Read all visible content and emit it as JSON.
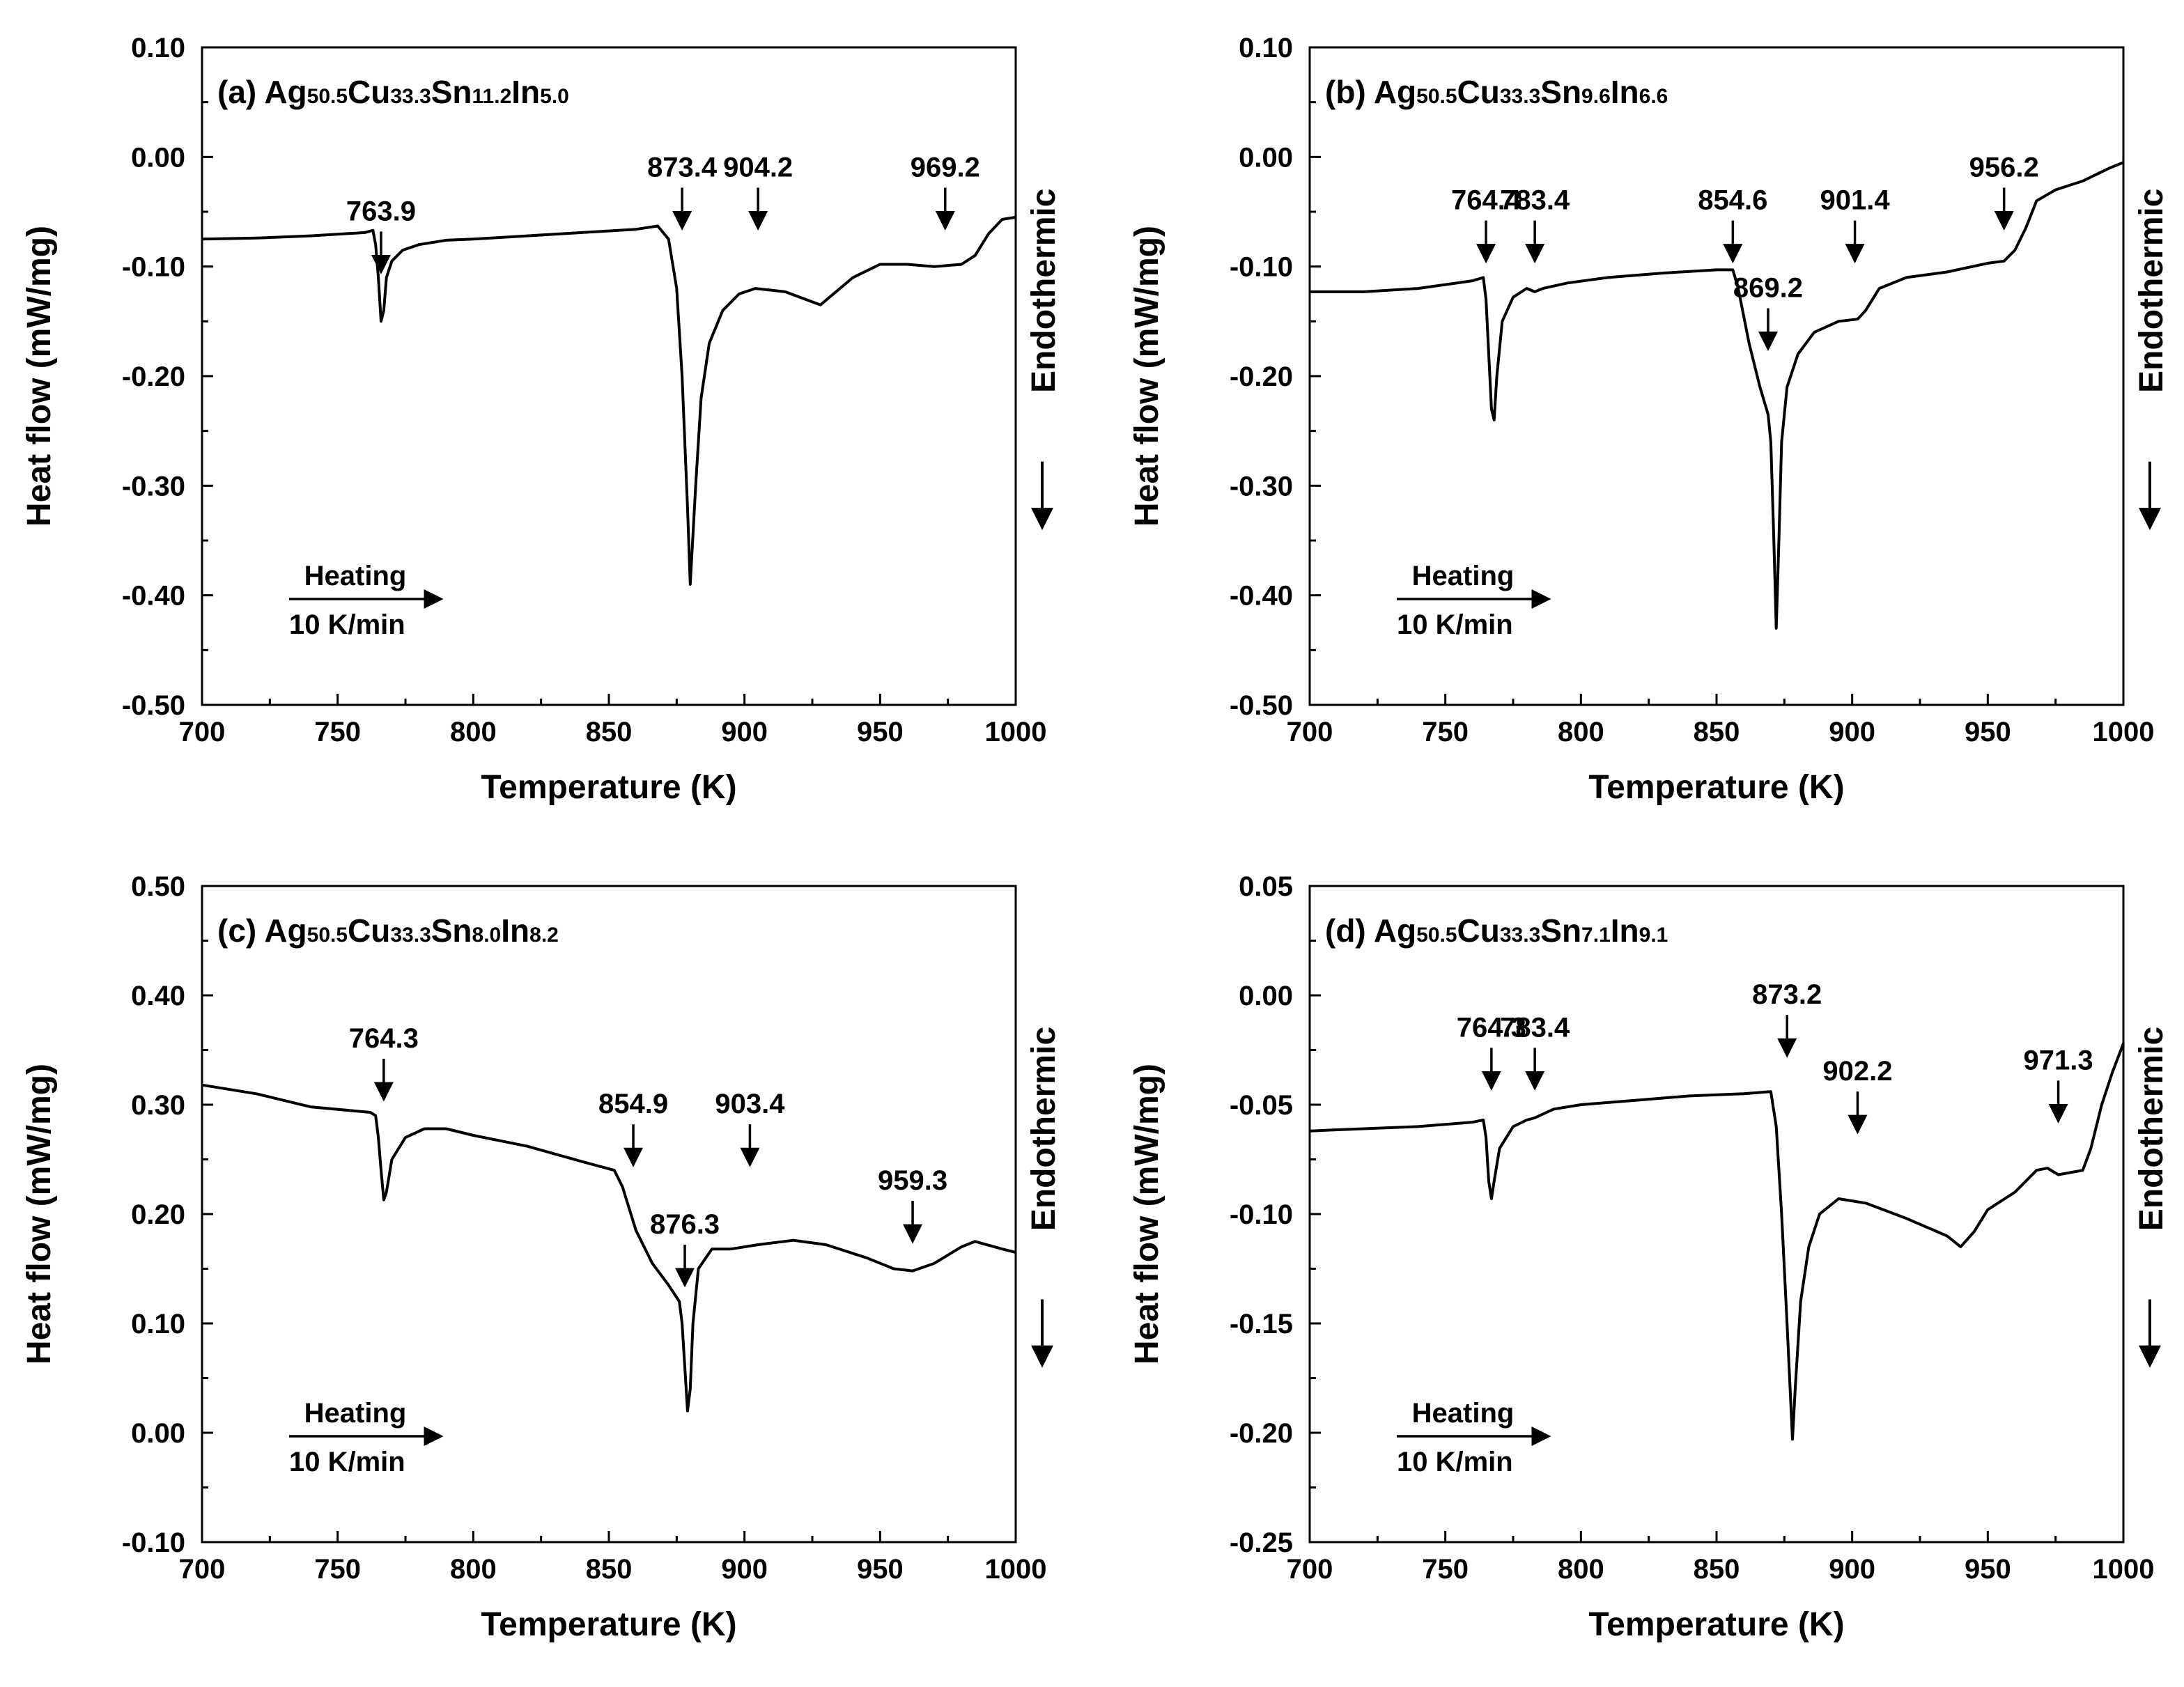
{
  "chart_data": [
    {
      "type": "line",
      "panel_label": "(a)",
      "title_parts": [
        [
          "Ag",
          false
        ],
        [
          "50.5",
          true
        ],
        [
          "Cu",
          false
        ],
        [
          "33.3",
          true
        ],
        [
          "Sn",
          false
        ],
        [
          "11.2",
          true
        ],
        [
          "In",
          false
        ],
        [
          "5.0",
          true
        ]
      ],
      "xlabel": "Temperature (K)",
      "ylabel": "Heat flow (mW/mg)",
      "side_label": "Endothermic",
      "xlim": [
        700,
        1000
      ],
      "ylim": [
        -0.5,
        0.1
      ],
      "x_ticks": [
        700,
        750,
        800,
        850,
        900,
        950,
        1000
      ],
      "y_ticks": [
        -0.5,
        -0.4,
        -0.3,
        -0.2,
        -0.1,
        0.0,
        0.1
      ],
      "y_tick_labels": [
        "-0.50",
        "-0.40",
        "-0.30",
        "-0.20",
        "-0.10",
        "0.00",
        "0.10"
      ],
      "annotation_heating": "Heating",
      "annotation_rate": "10 K/min",
      "series": [
        {
          "name": "DSC heating curve",
          "points": [
            [
              700,
              -0.075
            ],
            [
              720,
              -0.074
            ],
            [
              740,
              -0.072
            ],
            [
              760,
              -0.069
            ],
            [
              763,
              -0.067
            ],
            [
              764,
              -0.08
            ],
            [
              765,
              -0.11
            ],
            [
              766,
              -0.15
            ],
            [
              767,
              -0.14
            ],
            [
              768,
              -0.11
            ],
            [
              770,
              -0.095
            ],
            [
              774,
              -0.085
            ],
            [
              780,
              -0.08
            ],
            [
              790,
              -0.076
            ],
            [
              800,
              -0.075
            ],
            [
              820,
              -0.072
            ],
            [
              840,
              -0.069
            ],
            [
              860,
              -0.066
            ],
            [
              868,
              -0.063
            ],
            [
              872,
              -0.075
            ],
            [
              875,
              -0.12
            ],
            [
              877,
              -0.2
            ],
            [
              879,
              -0.32
            ],
            [
              880,
              -0.39
            ],
            [
              882,
              -0.3
            ],
            [
              884,
              -0.22
            ],
            [
              887,
              -0.17
            ],
            [
              892,
              -0.14
            ],
            [
              898,
              -0.125
            ],
            [
              904,
              -0.12
            ],
            [
              915,
              -0.123
            ],
            [
              928,
              -0.135
            ],
            [
              940,
              -0.11
            ],
            [
              950,
              -0.098
            ],
            [
              960,
              -0.098
            ],
            [
              970,
              -0.1
            ],
            [
              980,
              -0.098
            ],
            [
              985,
              -0.09
            ],
            [
              990,
              -0.07
            ],
            [
              995,
              -0.057
            ],
            [
              1000,
              -0.055
            ]
          ]
        }
      ],
      "peaks": [
        {
          "label": "763.9",
          "x": 766,
          "y": -0.11
        },
        {
          "label": "873.4",
          "x": 877,
          "y": -0.07
        },
        {
          "label": "904.2",
          "x": 905,
          "y": -0.07
        },
        {
          "label": "969.2",
          "x": 974,
          "y": -0.07
        }
      ]
    },
    {
      "type": "line",
      "panel_label": "(b)",
      "title_parts": [
        [
          "Ag",
          false
        ],
        [
          "50.5",
          true
        ],
        [
          "Cu",
          false
        ],
        [
          "33.3",
          true
        ],
        [
          "Sn",
          false
        ],
        [
          "9.6",
          true
        ],
        [
          "In",
          false
        ],
        [
          "6.6",
          true
        ]
      ],
      "xlabel": "Temperature (K)",
      "ylabel": "Heat flow (mW/mg)",
      "side_label": "Endothermic",
      "xlim": [
        700,
        1000
      ],
      "ylim": [
        -0.5,
        0.1
      ],
      "x_ticks": [
        700,
        750,
        800,
        850,
        900,
        950,
        1000
      ],
      "y_ticks": [
        -0.5,
        -0.4,
        -0.3,
        -0.2,
        -0.1,
        0.0,
        0.1
      ],
      "y_tick_labels": [
        "-0.50",
        "-0.40",
        "-0.30",
        "-0.20",
        "-0.10",
        "0.00",
        "0.10"
      ],
      "annotation_heating": "Heating",
      "annotation_rate": "10 K/min",
      "series": [
        {
          "name": "DSC heating curve",
          "points": [
            [
              700,
              -0.123
            ],
            [
              720,
              -0.123
            ],
            [
              740,
              -0.12
            ],
            [
              760,
              -0.113
            ],
            [
              764,
              -0.11
            ],
            [
              765,
              -0.13
            ],
            [
              766,
              -0.18
            ],
            [
              767,
              -0.23
            ],
            [
              768,
              -0.24
            ],
            [
              769,
              -0.2
            ],
            [
              771,
              -0.15
            ],
            [
              775,
              -0.128
            ],
            [
              780,
              -0.12
            ],
            [
              783,
              -0.123
            ],
            [
              786,
              -0.12
            ],
            [
              795,
              -0.115
            ],
            [
              810,
              -0.11
            ],
            [
              830,
              -0.106
            ],
            [
              850,
              -0.103
            ],
            [
              856,
              -0.103
            ],
            [
              858,
              -0.12
            ],
            [
              862,
              -0.17
            ],
            [
              866,
              -0.21
            ],
            [
              869,
              -0.235
            ],
            [
              870,
              -0.26
            ],
            [
              871,
              -0.34
            ],
            [
              872,
              -0.43
            ],
            [
              873,
              -0.35
            ],
            [
              874,
              -0.26
            ],
            [
              876,
              -0.21
            ],
            [
              880,
              -0.18
            ],
            [
              886,
              -0.16
            ],
            [
              895,
              -0.15
            ],
            [
              902,
              -0.148
            ],
            [
              905,
              -0.14
            ],
            [
              910,
              -0.12
            ],
            [
              920,
              -0.11
            ],
            [
              935,
              -0.105
            ],
            [
              950,
              -0.097
            ],
            [
              956,
              -0.095
            ],
            [
              960,
              -0.085
            ],
            [
              964,
              -0.065
            ],
            [
              968,
              -0.04
            ],
            [
              975,
              -0.03
            ],
            [
              985,
              -0.022
            ],
            [
              995,
              -0.01
            ],
            [
              1000,
              -0.005
            ]
          ]
        }
      ],
      "peaks": [
        {
          "label": "764.4",
          "x": 765,
          "y": -0.1
        },
        {
          "label": "783.4",
          "x": 783,
          "y": -0.1
        },
        {
          "label": "854.6",
          "x": 856,
          "y": -0.1
        },
        {
          "label": "869.2",
          "x": 869,
          "y": -0.18
        },
        {
          "label": "901.4",
          "x": 901,
          "y": -0.1
        },
        {
          "label": "956.2",
          "x": 956,
          "y": -0.07
        }
      ]
    },
    {
      "type": "line",
      "panel_label": "(c)",
      "title_parts": [
        [
          "Ag",
          false
        ],
        [
          "50.5",
          true
        ],
        [
          "Cu",
          false
        ],
        [
          "33.3",
          true
        ],
        [
          "Sn",
          false
        ],
        [
          "8.0",
          true
        ],
        [
          "In",
          false
        ],
        [
          "8.2",
          true
        ]
      ],
      "xlabel": "Temperature (K)",
      "ylabel": "Heat flow (mW/mg)",
      "side_label": "Endothermic",
      "xlim": [
        700,
        1000
      ],
      "ylim": [
        -0.1,
        0.5
      ],
      "x_ticks": [
        700,
        750,
        800,
        850,
        900,
        950,
        1000
      ],
      "y_ticks": [
        -0.1,
        0.0,
        0.1,
        0.2,
        0.3,
        0.4,
        0.5
      ],
      "y_tick_labels": [
        "-0.10",
        "0.00",
        "0.10",
        "0.20",
        "0.30",
        "0.40",
        "0.50"
      ],
      "annotation_heating": "Heating",
      "annotation_rate": "10 K/min",
      "series": [
        {
          "name": "DSC heating curve",
          "points": [
            [
              700,
              0.318
            ],
            [
              720,
              0.31
            ],
            [
              740,
              0.298
            ],
            [
              762,
              0.293
            ],
            [
              764,
              0.29
            ],
            [
              765,
              0.27
            ],
            [
              766,
              0.24
            ],
            [
              767,
              0.213
            ],
            [
              768,
              0.22
            ],
            [
              770,
              0.25
            ],
            [
              775,
              0.27
            ],
            [
              782,
              0.278
            ],
            [
              790,
              0.278
            ],
            [
              800,
              0.272
            ],
            [
              820,
              0.262
            ],
            [
              840,
              0.248
            ],
            [
              852,
              0.24
            ],
            [
              855,
              0.225
            ],
            [
              860,
              0.185
            ],
            [
              866,
              0.155
            ],
            [
              872,
              0.135
            ],
            [
              876,
              0.12
            ],
            [
              877,
              0.1
            ],
            [
              878,
              0.06
            ],
            [
              879,
              0.02
            ],
            [
              880,
              0.04
            ],
            [
              881,
              0.1
            ],
            [
              883,
              0.15
            ],
            [
              888,
              0.168
            ],
            [
              895,
              0.168
            ],
            [
              905,
              0.172
            ],
            [
              918,
              0.176
            ],
            [
              930,
              0.172
            ],
            [
              945,
              0.16
            ],
            [
              955,
              0.15
            ],
            [
              962,
              0.148
            ],
            [
              970,
              0.155
            ],
            [
              980,
              0.17
            ],
            [
              985,
              0.175
            ],
            [
              995,
              0.168
            ],
            [
              1000,
              0.165
            ]
          ]
        }
      ],
      "peaks": [
        {
          "label": "764.3",
          "x": 767,
          "y": 0.3
        },
        {
          "label": "854.9",
          "x": 859,
          "y": 0.24
        },
        {
          "label": "876.3",
          "x": 878,
          "y": 0.13
        },
        {
          "label": "903.4",
          "x": 902,
          "y": 0.24
        },
        {
          "label": "959.3",
          "x": 962,
          "y": 0.17
        }
      ]
    },
    {
      "type": "line",
      "panel_label": "(d)",
      "title_parts": [
        [
          "Ag",
          false
        ],
        [
          "50.5",
          true
        ],
        [
          "Cu",
          false
        ],
        [
          "33.3",
          true
        ],
        [
          "Sn",
          false
        ],
        [
          "7.1",
          true
        ],
        [
          "In",
          false
        ],
        [
          "9.1",
          true
        ]
      ],
      "xlabel": "Temperature (K)",
      "ylabel": "Heat flow (mW/mg)",
      "side_label": "Endothermic",
      "xlim": [
        700,
        1000
      ],
      "ylim": [
        -0.25,
        0.05
      ],
      "x_ticks": [
        700,
        750,
        800,
        850,
        900,
        950,
        1000
      ],
      "y_ticks": [
        -0.25,
        -0.2,
        -0.15,
        -0.1,
        -0.05,
        0.0,
        0.05
      ],
      "y_tick_labels": [
        "-0.25",
        "-0.20",
        "-0.15",
        "-0.10",
        "-0.05",
        "0.00",
        "0.05"
      ],
      "annotation_heating": "Heating",
      "annotation_rate": "10 K/min",
      "series": [
        {
          "name": "DSC heating curve",
          "points": [
            [
              700,
              -0.062
            ],
            [
              720,
              -0.061
            ],
            [
              740,
              -0.06
            ],
            [
              760,
              -0.058
            ],
            [
              764,
              -0.057
            ],
            [
              765,
              -0.065
            ],
            [
              766,
              -0.085
            ],
            [
              767,
              -0.093
            ],
            [
              768,
              -0.085
            ],
            [
              770,
              -0.07
            ],
            [
              775,
              -0.06
            ],
            [
              780,
              -0.057
            ],
            [
              783,
              -0.056
            ],
            [
              790,
              -0.052
            ],
            [
              800,
              -0.05
            ],
            [
              820,
              -0.048
            ],
            [
              840,
              -0.046
            ],
            [
              860,
              -0.045
            ],
            [
              870,
              -0.044
            ],
            [
              872,
              -0.06
            ],
            [
              874,
              -0.1
            ],
            [
              876,
              -0.15
            ],
            [
              878,
              -0.203
            ],
            [
              879,
              -0.18
            ],
            [
              881,
              -0.14
            ],
            [
              884,
              -0.115
            ],
            [
              888,
              -0.1
            ],
            [
              895,
              -0.093
            ],
            [
              905,
              -0.095
            ],
            [
              920,
              -0.102
            ],
            [
              935,
              -0.11
            ],
            [
              940,
              -0.115
            ],
            [
              945,
              -0.108
            ],
            [
              950,
              -0.098
            ],
            [
              960,
              -0.09
            ],
            [
              968,
              -0.08
            ],
            [
              972,
              -0.079
            ],
            [
              976,
              -0.082
            ],
            [
              985,
              -0.08
            ],
            [
              988,
              -0.07
            ],
            [
              992,
              -0.05
            ],
            [
              996,
              -0.035
            ],
            [
              1000,
              -0.022
            ]
          ]
        }
      ],
      "peaks": [
        {
          "label": "764.3",
          "x": 767,
          "y": -0.045
        },
        {
          "label": "783.4",
          "x": 783,
          "y": -0.045
        },
        {
          "label": "873.2",
          "x": 876,
          "y": -0.03
        },
        {
          "label": "902.2",
          "x": 902,
          "y": -0.065
        },
        {
          "label": "971.3",
          "x": 976,
          "y": -0.06
        }
      ]
    }
  ]
}
